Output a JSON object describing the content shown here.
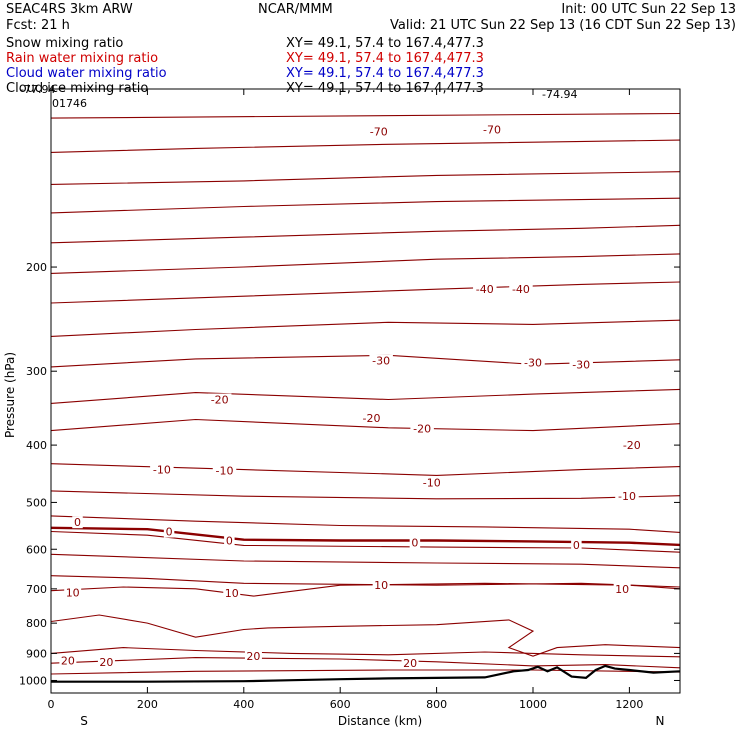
{
  "header": {
    "model": "SEAC4RS   3km ARW",
    "forecast": "Fcst:     21 h",
    "center": "NCAR/MMM",
    "init": "Init: 00 UTC Sun 22 Sep 13",
    "valid": "Valid: 21 UTC Sun 22 Sep 13 (16 CDT Sun 22 Sep 13)",
    "fields": [
      {
        "label": "Snow mixing ratio",
        "xy": "XY=  49.1, 57.4 to 167.4,477.3",
        "color": "#000000"
      },
      {
        "label": "Rain water mixing ratio",
        "xy": "XY=  49.1, 57.4 to 167.4,477.3",
        "color": "#d00000"
      },
      {
        "label": "Cloud water mixing ratio",
        "xy": "XY=  49.1, 57.4 to 167.4,477.3",
        "color": "#0000c8"
      },
      {
        "label": "Cloud ice mixing ratio",
        "xy": "XY=  49.1, 57.4 to 167.4,477.3",
        "color": "#000000"
      }
    ],
    "top_annotations": [
      "-77.94",
      "-74.94"
    ],
    "corner_value": "01746"
  },
  "chart_data": {
    "type": "line",
    "xlabel": "Distance (km)",
    "ylabel": "Pressure (hPa)",
    "xlim": [
      0,
      1305
    ],
    "ylim": [
      1050,
      100
    ],
    "y_scale": "log",
    "x_ticks": [
      "0",
      "200",
      "400",
      "600",
      "800",
      "1000",
      "1200"
    ],
    "y_ticks": [
      "200",
      "300",
      "400",
      "500",
      "600",
      "700",
      "800",
      "900",
      "1000"
    ],
    "x_end_labels": {
      "left": "S",
      "right": "N"
    },
    "grid": false,
    "contour_color": "#8b0000",
    "contour_field": "temperature (°C)",
    "contour_interval": 5,
    "series": [
      {
        "x": [
          0,
          1305
        ],
        "y": [
          112,
          110
        ]
      },
      {
        "x": [
          0,
          300,
          700,
          1305
        ],
        "y": [
          128,
          126,
          124,
          122
        ]
      },
      {
        "x": [
          0,
          400,
          800,
          1305
        ],
        "y": [
          145,
          143,
          140,
          138
        ]
      },
      {
        "x": [
          0,
          400,
          800,
          1305
        ],
        "y": [
          162,
          158,
          155,
          153
        ]
      },
      {
        "x": [
          0,
          400,
          800,
          1100,
          1305
        ],
        "y": [
          182,
          178,
          174,
          172,
          170
        ]
      },
      {
        "x": [
          0,
          400,
          800,
          1100,
          1305
        ],
        "y": [
          205,
          200,
          194,
          192,
          190
        ]
      },
      {
        "x": [
          0,
          400,
          800,
          1100,
          1305
        ],
        "y": [
          230,
          224,
          218,
          214,
          212
        ]
      },
      {
        "x": [
          0,
          300,
          700,
          1000,
          1305
        ],
        "y": [
          262,
          255,
          248,
          250,
          246
        ]
      },
      {
        "x": [
          0,
          300,
          700,
          1000,
          1305
        ],
        "y": [
          295,
          286,
          282,
          292,
          287
        ]
      },
      {
        "x": [
          0,
          300,
          700,
          1000,
          1305
        ],
        "y": [
          340,
          326,
          335,
          328,
          322
        ]
      },
      {
        "x": [
          0,
          300,
          700,
          1000,
          1305
        ],
        "y": [
          378,
          362,
          374,
          378,
          368
        ]
      },
      {
        "x": [
          0,
          400,
          800,
          1100,
          1305
        ],
        "y": [
          430,
          440,
          450,
          440,
          435
        ]
      },
      {
        "x": [
          0,
          400,
          800,
          1100,
          1305
        ],
        "y": [
          478,
          488,
          493,
          492,
          487
        ]
      },
      {
        "x": [
          0,
          300,
          600,
          900,
          1200,
          1305
        ],
        "y": [
          527,
          538,
          547,
          550,
          555,
          562
        ]
      },
      {
        "x": [
          0,
          200,
          400,
          800,
          1100,
          1305
        ],
        "y": [
          560,
          568,
          591,
          595,
          597,
          607
        ]
      },
      {
        "x": [
          0,
          400,
          800,
          1100,
          1305
        ],
        "y": [
          612,
          628,
          633,
          636,
          645
        ]
      },
      {
        "x": [
          0,
          200,
          400,
          800,
          1100,
          1305
        ],
        "y": [
          665,
          672,
          685,
          690,
          685,
          695
        ]
      },
      {
        "x": [
          0,
          150,
          300,
          420,
          600,
          900,
          1200,
          1305
        ],
        "y": [
          705,
          695,
          700,
          720,
          690,
          685,
          690,
          700
        ]
      },
      {
        "x": [
          0,
          150,
          300,
          500,
          700,
          900,
          1100,
          1305
        ],
        "y": [
          900,
          880,
          890,
          900,
          905,
          895,
          905,
          912
        ]
      },
      {
        "x": [
          0,
          300,
          600,
          800,
          1000,
          1150,
          1305
        ],
        "y": [
          935,
          915,
          920,
          930,
          945,
          940,
          952
        ]
      },
      {
        "x": [
          0,
          300,
          700,
          1000,
          1305
        ],
        "y": [
          975,
          965,
          960,
          960,
          968
        ]
      }
    ],
    "zero_isotherm": {
      "x": [
        0,
        200,
        400,
        600,
        800,
        1000,
        1200,
        1305
      ],
      "y": [
        552,
        555,
        578,
        580,
        580,
        582,
        585,
        590
      ]
    },
    "cloud_outline": {
      "x": [
        0,
        100,
        200,
        300,
        400,
        450,
        600,
        800,
        950,
        1000,
        950,
        1000,
        1050,
        1150,
        1305
      ],
      "y": [
        795,
        775,
        800,
        845,
        820,
        815,
        810,
        805,
        790,
        825,
        880,
        910,
        880,
        870,
        880
      ]
    },
    "terrain": {
      "x": [
        0,
        200,
        400,
        500,
        600,
        700,
        800,
        900,
        960,
        990,
        1010,
        1030,
        1050,
        1080,
        1110,
        1130,
        1150,
        1170,
        1200,
        1250,
        1305
      ],
      "y": [
        1005,
        1005,
        1003,
        999,
        995,
        992,
        990,
        988,
        965,
        960,
        948,
        965,
        950,
        985,
        990,
        960,
        945,
        955,
        960,
        970,
        965
      ]
    },
    "contour_labels": [
      {
        "text": "-70",
        "x": 680,
        "y": 118
      },
      {
        "text": "-70",
        "x": 915,
        "y": 117
      },
      {
        "text": "-40",
        "x": 900,
        "y": 218
      },
      {
        "text": "-40",
        "x": 975,
        "y": 218
      },
      {
        "text": "-30",
        "x": 685,
        "y": 288
      },
      {
        "text": "-30",
        "x": 1000,
        "y": 290
      },
      {
        "text": "-30",
        "x": 1100,
        "y": 292
      },
      {
        "text": "-20",
        "x": 350,
        "y": 335
      },
      {
        "text": "-20",
        "x": 665,
        "y": 360
      },
      {
        "text": "-20",
        "x": 770,
        "y": 375
      },
      {
        "text": "-20",
        "x": 1205,
        "y": 400
      },
      {
        "text": "-10",
        "x": 230,
        "y": 440
      },
      {
        "text": "-10",
        "x": 360,
        "y": 442
      },
      {
        "text": "-10",
        "x": 790,
        "y": 463
      },
      {
        "text": "-10",
        "x": 1195,
        "y": 488
      },
      {
        "text": "0",
        "x": 55,
        "y": 540
      },
      {
        "text": "0",
        "x": 245,
        "y": 560
      },
      {
        "text": "0",
        "x": 370,
        "y": 580
      },
      {
        "text": "0",
        "x": 755,
        "y": 585
      },
      {
        "text": "0",
        "x": 1090,
        "y": 590
      },
      {
        "text": "10",
        "x": 45,
        "y": 710
      },
      {
        "text": "10",
        "x": 375,
        "y": 712
      },
      {
        "text": "10",
        "x": 685,
        "y": 690
      },
      {
        "text": "10",
        "x": 1185,
        "y": 700
      },
      {
        "text": "20",
        "x": 35,
        "y": 925
      },
      {
        "text": "20",
        "x": 115,
        "y": 930
      },
      {
        "text": "20",
        "x": 420,
        "y": 910
      },
      {
        "text": "20",
        "x": 745,
        "y": 935
      }
    ]
  }
}
